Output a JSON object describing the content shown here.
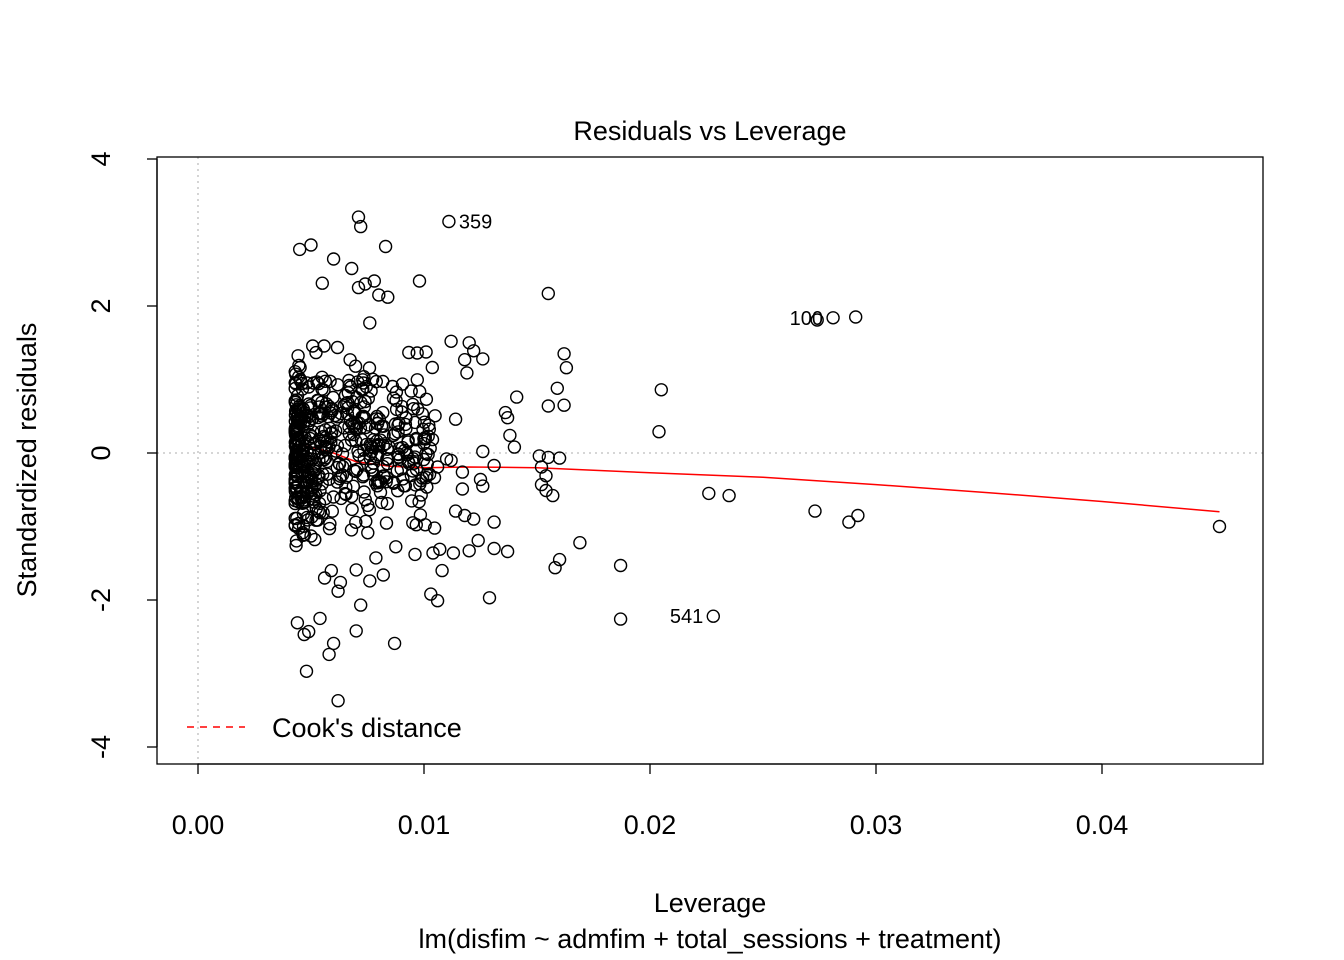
{
  "chart_data": {
    "type": "scatter",
    "title": "Residuals vs Leverage",
    "xlabel": "Leverage",
    "ylabel": "Standardized residuals",
    "subtitle": "lm(disfim ~ admfim + total_sessions + treatment)",
    "xlim": [
      -0.001,
      0.0469
    ],
    "ylim": [
      -4.2,
      4.0
    ],
    "x_ticks": [
      {
        "value": 0.0,
        "label": "0.00"
      },
      {
        "value": 0.01,
        "label": "0.01"
      },
      {
        "value": 0.02,
        "label": "0.02"
      },
      {
        "value": 0.03,
        "label": "0.03"
      },
      {
        "value": 0.04,
        "label": "0.04"
      }
    ],
    "y_ticks": [
      {
        "value": -4,
        "label": "-4"
      },
      {
        "value": -2,
        "label": "-2"
      },
      {
        "value": 0,
        "label": "0"
      },
      {
        "value": 2,
        "label": "2"
      },
      {
        "value": 4,
        "label": "4"
      }
    ],
    "reference_lines": {
      "x": 0,
      "y": 0,
      "style": "dotted",
      "color": "#bebebe"
    },
    "smoother": {
      "color": "#ff0000",
      "x": [
        0.0043,
        0.005,
        0.006,
        0.007,
        0.0085,
        0.01,
        0.012,
        0.015,
        0.02,
        0.025,
        0.03,
        0.035,
        0.04,
        0.0452
      ],
      "y": [
        0.12,
        0.08,
        0.0,
        -0.12,
        -0.18,
        -0.2,
        -0.19,
        -0.2,
        -0.27,
        -0.33,
        -0.43,
        -0.54,
        -0.66,
        -0.8
      ]
    },
    "legend": {
      "position": "bottom-left",
      "entries": [
        {
          "label": "Cook's distance",
          "color": "#ff0000",
          "style": "dashed"
        }
      ]
    },
    "labeled_points": [
      {
        "label": "359",
        "x": 0.0111,
        "y": 3.15
      },
      {
        "label": "100",
        "x": 0.0281,
        "y": 1.84
      },
      {
        "label": "541",
        "x": 0.0228,
        "y": -2.22
      }
    ],
    "highlighted_points": [
      {
        "x": 0.0071,
        "y": 3.21
      },
      {
        "x": 0.0072,
        "y": 3.08
      },
      {
        "x": 0.0045,
        "y": 2.77
      },
      {
        "x": 0.005,
        "y": 2.83
      },
      {
        "x": 0.0083,
        "y": 2.81
      },
      {
        "x": 0.006,
        "y": 2.64
      },
      {
        "x": 0.0068,
        "y": 2.51
      },
      {
        "x": 0.0098,
        "y": 2.34
      },
      {
        "x": 0.0078,
        "y": 2.34
      },
      {
        "x": 0.0055,
        "y": 2.31
      },
      {
        "x": 0.0155,
        "y": 2.17
      },
      {
        "x": 0.0071,
        "y": 2.25
      },
      {
        "x": 0.0074,
        "y": 2.3
      },
      {
        "x": 0.008,
        "y": 2.15
      },
      {
        "x": 0.0084,
        "y": 2.12
      },
      {
        "x": 0.0076,
        "y": 1.77
      },
      {
        "x": 0.0274,
        "y": 1.81
      },
      {
        "x": 0.0291,
        "y": 1.85
      },
      {
        "x": 0.0112,
        "y": 1.52
      },
      {
        "x": 0.012,
        "y": 1.5
      },
      {
        "x": 0.0122,
        "y": 1.39
      },
      {
        "x": 0.0126,
        "y": 1.28
      },
      {
        "x": 0.0118,
        "y": 1.27
      },
      {
        "x": 0.0119,
        "y": 1.09
      },
      {
        "x": 0.0162,
        "y": 1.35
      },
      {
        "x": 0.0163,
        "y": 1.16
      },
      {
        "x": 0.0097,
        "y": 1.36
      },
      {
        "x": 0.0159,
        "y": 0.88
      },
      {
        "x": 0.0205,
        "y": 0.86
      },
      {
        "x": 0.0141,
        "y": 0.76
      },
      {
        "x": 0.0155,
        "y": 0.64
      },
      {
        "x": 0.0162,
        "y": 0.65
      },
      {
        "x": 0.0136,
        "y": 0.55
      },
      {
        "x": 0.0137,
        "y": 0.48
      },
      {
        "x": 0.0114,
        "y": 0.46
      },
      {
        "x": 0.0204,
        "y": 0.29
      },
      {
        "x": 0.0138,
        "y": 0.24
      },
      {
        "x": 0.014,
        "y": 0.08
      },
      {
        "x": 0.0151,
        "y": -0.04
      },
      {
        "x": 0.0155,
        "y": -0.06
      },
      {
        "x": 0.016,
        "y": -0.07
      },
      {
        "x": 0.0152,
        "y": -0.19
      },
      {
        "x": 0.0154,
        "y": -0.31
      },
      {
        "x": 0.0152,
        "y": -0.43
      },
      {
        "x": 0.0154,
        "y": -0.51
      },
      {
        "x": 0.0157,
        "y": -0.58
      },
      {
        "x": 0.0226,
        "y": -0.55
      },
      {
        "x": 0.0235,
        "y": -0.58
      },
      {
        "x": 0.0273,
        "y": -0.79
      },
      {
        "x": 0.0288,
        "y": -0.94
      },
      {
        "x": 0.0292,
        "y": -0.85
      },
      {
        "x": 0.0452,
        "y": -1.0
      },
      {
        "x": 0.0169,
        "y": -1.22
      },
      {
        "x": 0.016,
        "y": -1.45
      },
      {
        "x": 0.0158,
        "y": -1.56
      },
      {
        "x": 0.0187,
        "y": -1.53
      },
      {
        "x": 0.0129,
        "y": -1.97
      },
      {
        "x": 0.0187,
        "y": -2.26
      },
      {
        "x": 0.0113,
        "y": -1.36
      },
      {
        "x": 0.012,
        "y": -1.33
      },
      {
        "x": 0.0131,
        "y": -1.3
      },
      {
        "x": 0.0137,
        "y": -1.34
      },
      {
        "x": 0.0131,
        "y": -0.94
      },
      {
        "x": 0.0122,
        "y": -0.9
      },
      {
        "x": 0.0118,
        "y": -0.85
      },
      {
        "x": 0.0114,
        "y": -0.79
      },
      {
        "x": 0.0124,
        "y": -1.19
      },
      {
        "x": 0.0104,
        "y": -1.36
      },
      {
        "x": 0.0107,
        "y": -1.31
      },
      {
        "x": 0.0096,
        "y": -1.38
      },
      {
        "x": 0.0108,
        "y": -1.6
      },
      {
        "x": 0.0103,
        "y": -1.92
      },
      {
        "x": 0.0106,
        "y": -2.01
      },
      {
        "x": 0.0087,
        "y": -2.59
      },
      {
        "x": 0.007,
        "y": -2.42
      },
      {
        "x": 0.006,
        "y": -2.59
      },
      {
        "x": 0.0058,
        "y": -2.74
      },
      {
        "x": 0.0047,
        "y": -2.47
      },
      {
        "x": 0.0049,
        "y": -2.43
      },
      {
        "x": 0.0044,
        "y": -2.31
      },
      {
        "x": 0.0054,
        "y": -2.25
      },
      {
        "x": 0.0048,
        "y": -2.97
      },
      {
        "x": 0.0062,
        "y": -3.37
      },
      {
        "x": 0.0072,
        "y": -2.07
      },
      {
        "x": 0.0062,
        "y": -1.88
      },
      {
        "x": 0.0082,
        "y": -1.66
      },
      {
        "x": 0.0076,
        "y": -1.74
      },
      {
        "x": 0.007,
        "y": -1.59
      },
      {
        "x": 0.0056,
        "y": -1.7
      },
      {
        "x": 0.0063,
        "y": -1.76
      },
      {
        "x": 0.011,
        "y": -0.08
      },
      {
        "x": 0.0106,
        "y": -0.19
      },
      {
        "x": 0.0112,
        "y": -0.1
      },
      {
        "x": 0.0117,
        "y": -0.26
      },
      {
        "x": 0.0125,
        "y": -0.36
      },
      {
        "x": 0.0126,
        "y": -0.45
      },
      {
        "x": 0.0131,
        "y": -0.17
      },
      {
        "x": 0.0126,
        "y": 0.02
      },
      {
        "x": 0.0117,
        "y": -0.49
      }
    ],
    "point_cloud": {
      "count": 520,
      "x_range": [
        0.0043,
        0.0105
      ],
      "y_range": [
        -1.6,
        2.2
      ],
      "note": "dense"
    },
    "colors": {
      "points": "#000000",
      "smoother": "#ff0000",
      "reference": "#bebebe",
      "axes": "#000000"
    }
  }
}
